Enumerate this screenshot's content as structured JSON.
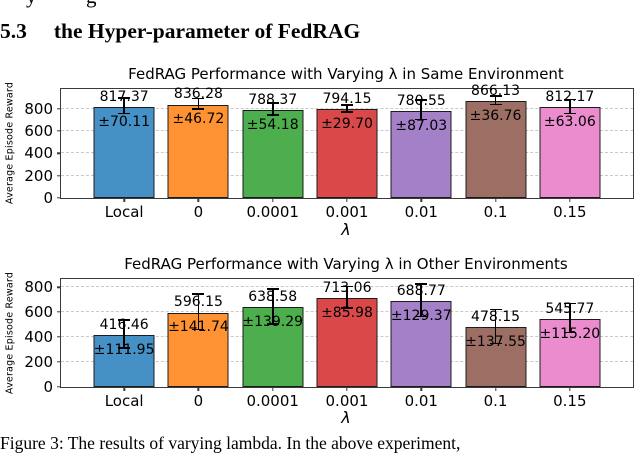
{
  "page": {
    "cropped_line_fragments": [
      {
        "char": "y"
      },
      {
        "char": "g"
      }
    ]
  },
  "heading": {
    "number": "5.3",
    "title": "the Hyper-parameter of FedRAG"
  },
  "caption": "Figure 3: The results of varying lambda. In the above experiment,",
  "palette": {
    "bar_colors": [
      "#4590c4",
      "#ff9233",
      "#4cae4c",
      "#da4849",
      "#a480c9",
      "#9d6f64",
      "#ea8ccd"
    ],
    "bar_edge": "#1c1c1c",
    "grid_color": "#c9c9c9",
    "frame_color": "#3a3a3a",
    "error_color": "#000000"
  },
  "chart_data": [
    {
      "type": "bar",
      "title": "FedRAG Performance with Varying λ in Same Environment",
      "xlabel": "λ",
      "ylabel": "Average Episode Reward",
      "categories": [
        "Local",
        "0",
        "0.0001",
        "0.001",
        "0.01",
        "0.1",
        "0.15"
      ],
      "values": [
        817.37,
        836.28,
        788.37,
        794.15,
        780.55,
        866.13,
        812.17
      ],
      "errors": [
        70.11,
        46.72,
        54.18,
        29.7,
        87.03,
        36.76,
        63.06
      ],
      "value_labels": [
        "817.37",
        "836.28",
        "788.37",
        "794.15",
        "780.55",
        "866.13",
        "812.17"
      ],
      "error_labels": [
        "±70.11",
        "±46.72",
        "±54.18",
        "±29.70",
        "±87.03",
        "±36.76",
        "±63.06"
      ],
      "yticks": [
        0,
        200,
        400,
        600,
        800
      ],
      "ylim": [
        0,
        975
      ],
      "grid": true,
      "legend": null
    },
    {
      "type": "bar",
      "title": "FedRAG Performance with Varying λ in Other Environments",
      "xlabel": "λ",
      "ylabel": "Average Episode Reward",
      "categories": [
        "Local",
        "0",
        "0.0001",
        "0.001",
        "0.01",
        "0.1",
        "0.15"
      ],
      "values": [
        416.46,
        596.15,
        638.58,
        713.06,
        688.77,
        478.15,
        545.77
      ],
      "errors": [
        111.95,
        141.74,
        139.29,
        85.98,
        129.37,
        137.55,
        115.2
      ],
      "value_labels": [
        "416.46",
        "596.15",
        "638.58",
        "713.06",
        "688.77",
        "478.15",
        "545.77"
      ],
      "error_labels": [
        "±111.95",
        "±141.74",
        "±139.29",
        "±85.98",
        "±129.37",
        "±137.55",
        "±115.20"
      ],
      "yticks": [
        0,
        200,
        400,
        600,
        800
      ],
      "ylim": [
        0,
        865
      ],
      "grid": true,
      "legend": null
    }
  ]
}
